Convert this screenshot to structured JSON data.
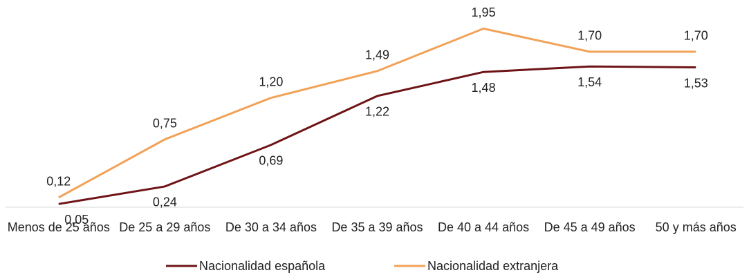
{
  "chart_data": {
    "type": "line",
    "categories": [
      "Menos de 25 años",
      "De 25 a 29 años",
      "De 30 a 34 años",
      "De 35 a 39 años",
      "De 40 a 44 años",
      "De 45 a 49 años",
      "50 y más años"
    ],
    "series": [
      {
        "name": "Nacionalidad española",
        "color": "#6e1416",
        "values": [
          0.05,
          0.24,
          0.69,
          1.22,
          1.48,
          1.54,
          1.53
        ],
        "value_labels": [
          "0,05",
          "0,24",
          "0,69",
          "1,22",
          "1,48",
          "1,54",
          "1,53"
        ]
      },
      {
        "name": "Nacionalidad extranjera",
        "color": "#f2a257",
        "values": [
          0.12,
          0.75,
          1.2,
          1.49,
          1.95,
          1.7,
          1.7
        ],
        "value_labels": [
          "0,12",
          "0,75",
          "1,20",
          "1,49",
          "1,95",
          "1,70",
          "1,70"
        ]
      }
    ],
    "ylim": [
      0,
      2.2
    ],
    "legend": "bottom"
  }
}
